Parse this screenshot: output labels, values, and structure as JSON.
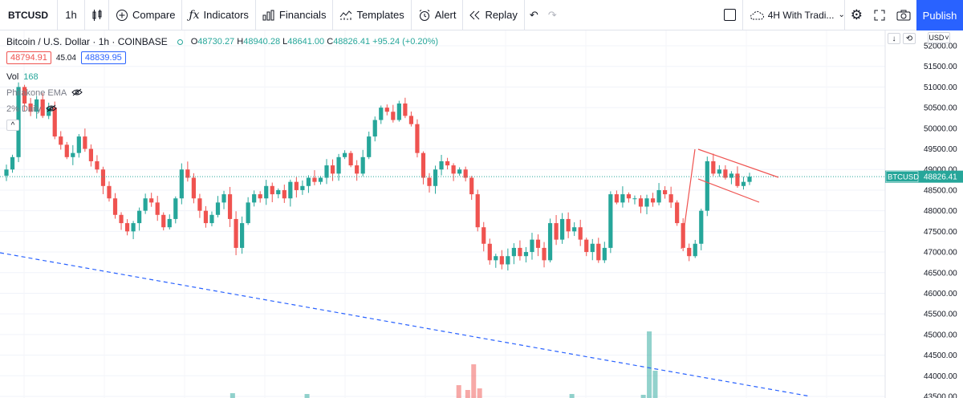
{
  "toolbar": {
    "symbol": "BTCUSD",
    "interval": "1h",
    "compare_label": "Compare",
    "indicators_label": "Indicators",
    "financials_label": "Financials",
    "templates_label": "Templates",
    "alert_label": "Alert",
    "replay_label": "Replay",
    "layout_label": "4H With Tradi...",
    "publish_label": "Publish"
  },
  "legend": {
    "title": "Bitcoin / U.S. Dollar · 1h · COINBASE",
    "o_key": "O",
    "o_val": "48730.27",
    "h_key": "H",
    "h_val": "48940.28",
    "l_key": "L",
    "l_val": "48641.00",
    "c_key": "C",
    "c_val": "48826.41",
    "change": "+95.24 (+0.20%)",
    "bid": "48794.91",
    "spread": "45.04",
    "ask": "48839.95",
    "vol_label": "Vol",
    "vol_value": "168",
    "indicator1": "Philakone EMA",
    "indicator2": "2% Daily"
  },
  "price_axis": {
    "currency": "USD",
    "ticks": [
      "52000.00",
      "51500.00",
      "51000.00",
      "50500.00",
      "50000.00",
      "49500.00",
      "49000.00",
      "48500.00",
      "48000.00",
      "47500.00",
      "47000.00",
      "46500.00",
      "46000.00",
      "45500.00",
      "45000.00",
      "44500.00",
      "44000.00",
      "43500.00"
    ],
    "last_symbol": "BTCUSD",
    "last_price": "48826.41"
  },
  "colors": {
    "up": "#26a69a",
    "down": "#ef5350",
    "accent": "#2962ff"
  },
  "chart_data": {
    "type": "candlestick",
    "ylim": [
      43500,
      52200
    ],
    "last_price": 48826.41,
    "closes": [
      49000,
      49300,
      51000,
      50600,
      50400,
      50700,
      50300,
      50500,
      49800,
      49600,
      49300,
      49400,
      49800,
      49500,
      49200,
      49000,
      48600,
      48300,
      47900,
      47700,
      47500,
      47700,
      48000,
      48300,
      48200,
      47900,
      47600,
      47800,
      48300,
      49000,
      48800,
      48300,
      48000,
      47700,
      47900,
      48200,
      48400,
      47800,
      47100,
      47700,
      48200,
      48400,
      48300,
      48600,
      48400,
      48500,
      48300,
      48700,
      48500,
      48600,
      48800,
      48700,
      48800,
      49100,
      48900,
      49300,
      49400,
      49100,
      48900,
      49300,
      49800,
      50200,
      50500,
      50400,
      50200,
      50600,
      50300,
      50100,
      49400,
      48800,
      48600,
      49000,
      49200,
      49100,
      48900,
      49000,
      48800,
      48400,
      47600,
      47200,
      46800,
      46900,
      46700,
      46900,
      47100,
      46900,
      47000,
      47300,
      47100,
      46800,
      47700,
      47300,
      47800,
      47500,
      47600,
      47300,
      47000,
      47200,
      46800,
      47100,
      48400,
      48200,
      48400,
      48300,
      48300,
      48100,
      48300,
      48200,
      48500,
      48400,
      48200,
      47700,
      47100,
      46900,
      47200,
      48000,
      49200,
      48900,
      49000,
      48800,
      48900,
      48600,
      48700,
      48826
    ],
    "annotations": {
      "flagpole": [
        [
          849,
          310
        ],
        [
          866,
          186
        ]
      ],
      "flag_upper": [
        [
          870,
          186
        ],
        [
          970,
          221
        ]
      ],
      "flag_lower": [
        [
          870,
          223
        ],
        [
          946,
          252
        ]
      ],
      "trend_line": [
        [
          0,
          315
        ],
        [
          1010,
          494
        ]
      ]
    },
    "volume_bars": [
      {
        "i": 76,
        "h": 6,
        "up": true
      },
      {
        "i": 101,
        "h": 5,
        "up": true
      },
      {
        "i": 152,
        "h": 16,
        "up": false
      },
      {
        "i": 155,
        "h": 10,
        "up": false
      },
      {
        "i": 157,
        "h": 42,
        "up": false
      },
      {
        "i": 159,
        "h": 12,
        "up": false
      },
      {
        "i": 190,
        "h": 5,
        "up": true
      },
      {
        "i": 216,
        "h": 83,
        "up": true
      },
      {
        "i": 218,
        "h": 34,
        "up": true
      },
      {
        "i": 214,
        "h": 4,
        "up": true
      }
    ]
  }
}
